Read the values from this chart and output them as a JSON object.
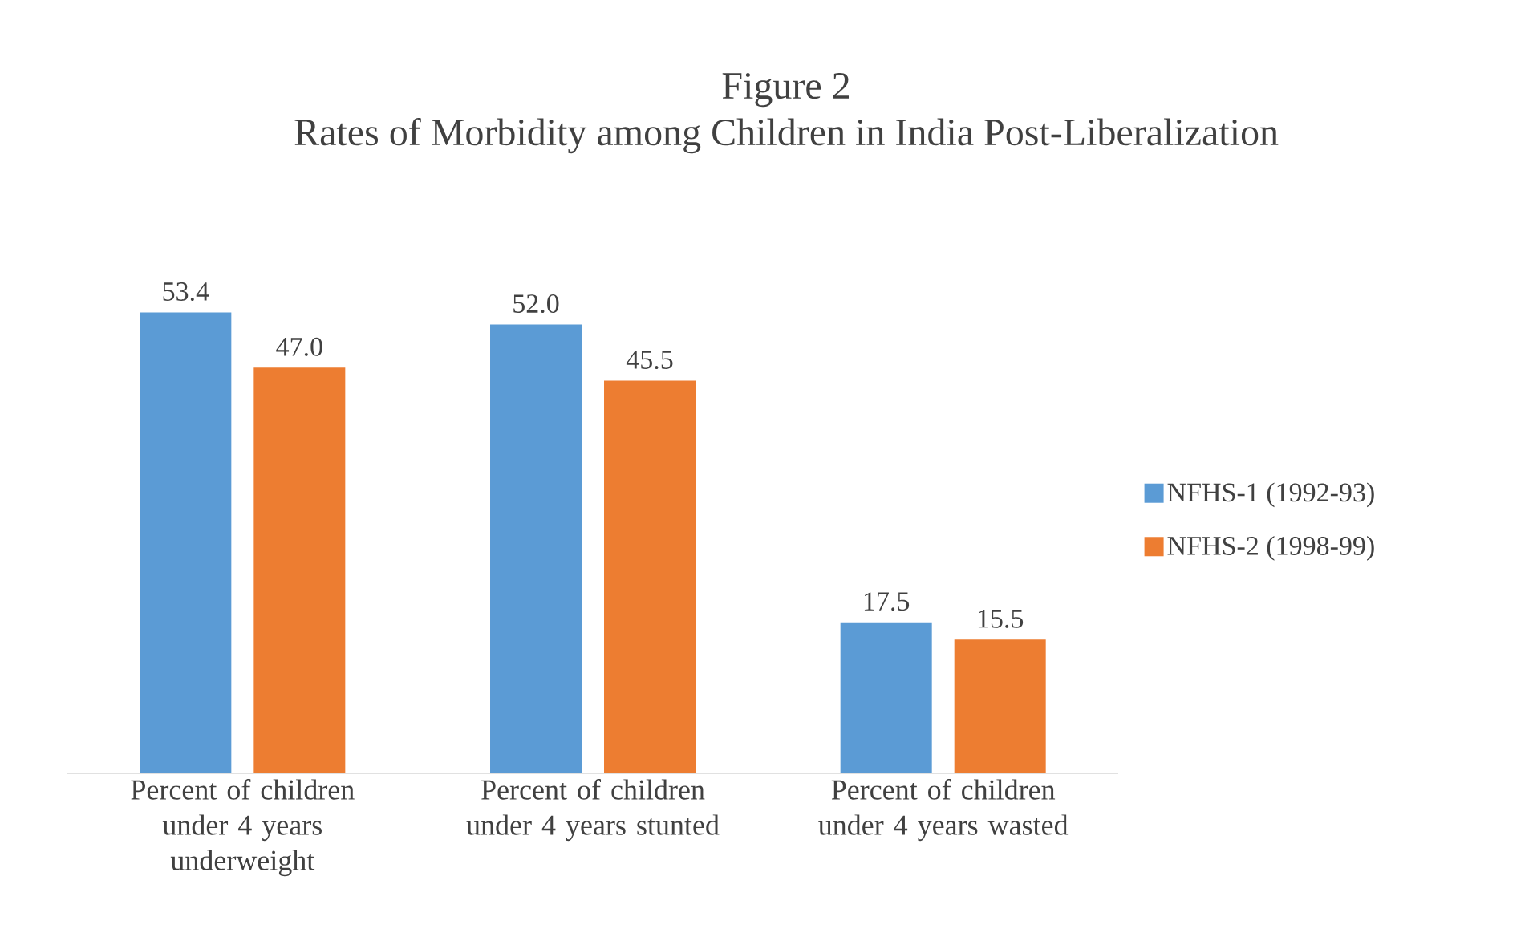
{
  "chart_data": {
    "type": "bar",
    "title": "Figure 2",
    "subtitle": "Rates of Morbidity among Children in India Post-Liberalization",
    "categories": [
      "Percent of children under 4 years underweight",
      "Percent of children under 4 years stunted",
      "Percent of children under 4 years wasted"
    ],
    "series": [
      {
        "name": "NFHS-1 (1992-93)",
        "color": "#5b9bd5",
        "values": [
          53.4,
          52.0,
          17.5
        ],
        "value_labels": [
          "53.4",
          "52.0",
          "17.5"
        ]
      },
      {
        "name": "NFHS-2 (1998-99)",
        "color": "#ed7d31",
        "values": [
          47.0,
          45.5,
          15.5
        ],
        "value_labels": [
          "47.0",
          "45.5",
          "15.5"
        ]
      }
    ],
    "legend": "right"
  }
}
